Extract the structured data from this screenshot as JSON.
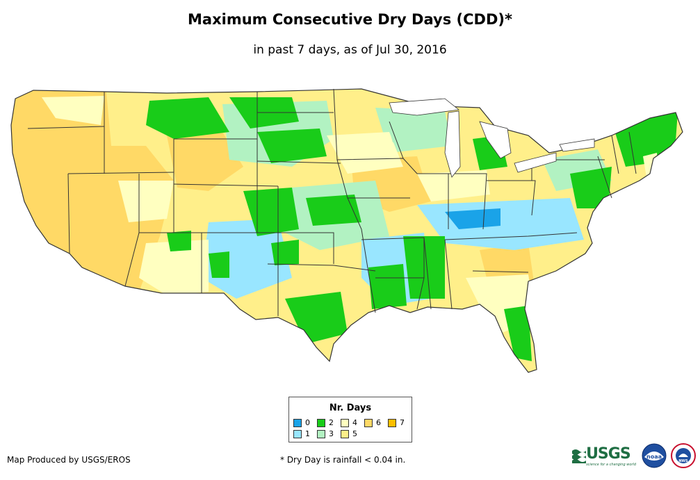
{
  "title": "Maximum Consecutive Dry Days (CDD)*",
  "subtitle": "in past 7 days, as of Jul 30, 2016",
  "legend": {
    "title": "Nr. Days",
    "items": [
      {
        "label": "0",
        "color": "#1aa3e8"
      },
      {
        "label": "1",
        "color": "#99e6ff"
      },
      {
        "label": "2",
        "color": "#19cc19"
      },
      {
        "label": "3",
        "color": "#b2f2c2"
      },
      {
        "label": "4",
        "color": "#ffffc0"
      },
      {
        "label": "5",
        "color": "#ffef8a"
      },
      {
        "label": "6",
        "color": "#ffd966"
      },
      {
        "label": "7",
        "color": "#ffbf00"
      }
    ]
  },
  "credit": "Map Produced by USGS/EROS",
  "footnote": "* Dry Day is rainfall < 0.04 in.",
  "logos": {
    "usgs": "USGS",
    "usgs_tagline": "science for a changing world",
    "noaa": "noaa",
    "nws": "NWS"
  }
}
